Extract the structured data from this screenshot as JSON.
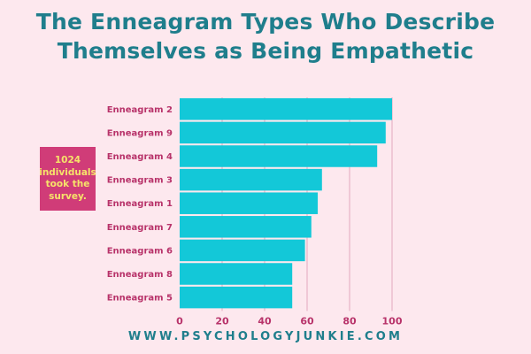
{
  "title": {
    "line1": "The Enneagram Types Who Describe",
    "line2": "Themselves as Being Empathetic"
  },
  "note": {
    "line1": "1024",
    "line2": "individuals",
    "line3": "took the",
    "line4": "survey."
  },
  "footer": "WWW.PSYCHOLOGYJUNKIE.COM",
  "colors": {
    "background": "#fde8ee",
    "bar": "#13c8d8",
    "title": "#1f7e8c",
    "label": "#b8336a",
    "grid": "#e2a7bd",
    "note_bg": "#d03c78",
    "note_text": "#f6e36a"
  },
  "chart_data": {
    "type": "bar",
    "orientation": "horizontal",
    "categories": [
      "Enneagram 2",
      "Enneagram 9",
      "Enneagram 4",
      "Enneagram 3",
      "Enneagram 1",
      "Enneagram 7",
      "Enneagram 6",
      "Enneagram 8",
      "Enneagram 5"
    ],
    "values": [
      100,
      97,
      93,
      67,
      65,
      62,
      59,
      53,
      53
    ],
    "xlim": [
      0,
      100
    ],
    "xticks": [
      0,
      20,
      40,
      60,
      80,
      100
    ],
    "grid": true
  }
}
